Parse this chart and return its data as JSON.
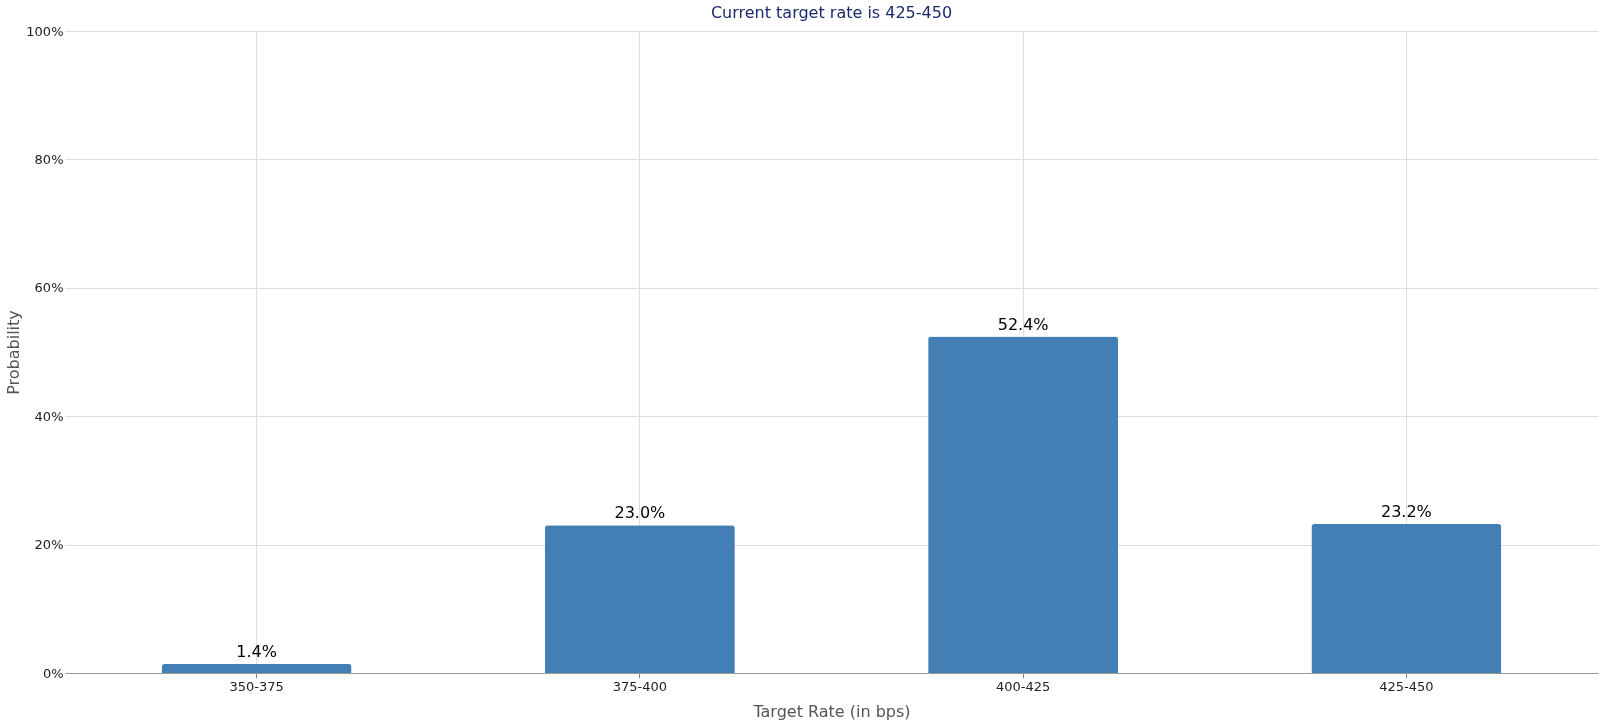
{
  "chart_data": {
    "type": "bar",
    "title": "Current target rate is 425-450",
    "xlabel": "Target Rate (in bps)",
    "ylabel": "Probability",
    "categories": [
      "350-375",
      "375-400",
      "400-425",
      "425-450"
    ],
    "values": [
      1.4,
      23.0,
      52.4,
      23.2
    ],
    "value_labels": [
      "1.4%",
      "23.0%",
      "52.4%",
      "23.2%"
    ],
    "color": "#437fb4",
    "ylim": [
      0,
      100
    ],
    "yticks": [
      {
        "value": 0,
        "label": "0%"
      },
      {
        "value": 20,
        "label": "20%"
      },
      {
        "value": 40,
        "label": "40%"
      },
      {
        "value": 60,
        "label": "60%"
      },
      {
        "value": 80,
        "label": "80%"
      },
      {
        "value": 100,
        "label": "100%"
      }
    ],
    "grid": true
  }
}
